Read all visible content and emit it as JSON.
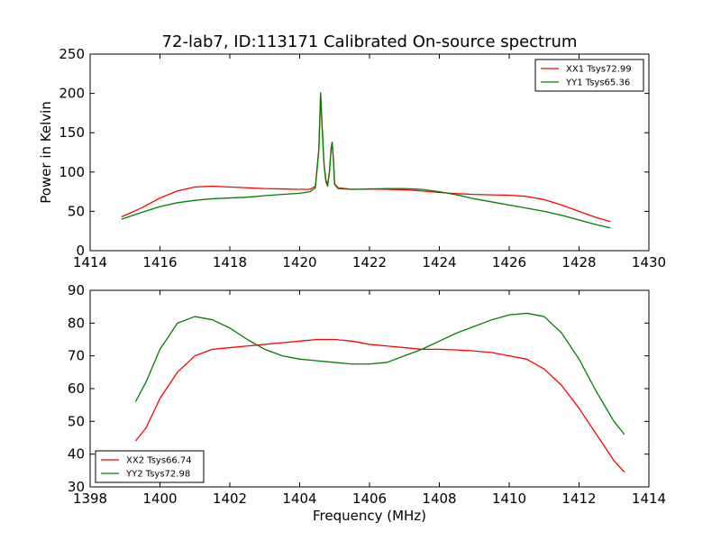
{
  "chart_data": [
    {
      "type": "line",
      "title": "72-lab7, ID:113171 Calibrated On-source spectrum",
      "xlabel": "",
      "ylabel": "Power in Kelvin",
      "xlim": [
        1414,
        1430
      ],
      "ylim": [
        0,
        250
      ],
      "xticks": [
        "1414",
        "1416",
        "1418",
        "1420",
        "1422",
        "1424",
        "1426",
        "1428",
        "1430"
      ],
      "yticks": [
        "0",
        "50",
        "100",
        "150",
        "200",
        "250"
      ],
      "legend_position": "top-right",
      "series": [
        {
          "name": "XX1 Tsys72.99",
          "color": "#ff0000",
          "x": [
            1414.9,
            1415.5,
            1416.0,
            1416.5,
            1417.0,
            1417.5,
            1418.0,
            1418.5,
            1419.0,
            1419.5,
            1420.0,
            1420.3,
            1420.45,
            1420.55,
            1420.6,
            1420.65,
            1420.7,
            1420.75,
            1420.8,
            1420.85,
            1420.9,
            1420.93,
            1420.97,
            1421.0,
            1421.1,
            1421.5,
            1422.0,
            1422.5,
            1423.0,
            1423.5,
            1424.0,
            1424.5,
            1425.0,
            1425.5,
            1426.0,
            1426.5,
            1427.0,
            1427.5,
            1428.0,
            1428.5,
            1428.9
          ],
          "y": [
            43,
            55,
            67,
            76,
            81,
            82,
            81,
            80,
            79,
            78.5,
            78,
            78,
            82,
            130,
            200,
            150,
            110,
            90,
            84,
            100,
            130,
            138,
            115,
            85,
            80,
            78,
            78.5,
            78,
            77.5,
            76,
            74,
            72.5,
            71.5,
            71,
            70.5,
            69,
            65,
            58,
            50,
            42,
            37
          ]
        },
        {
          "name": "YY1 Tsys65.36",
          "color": "#008000",
          "x": [
            1414.9,
            1415.5,
            1416.0,
            1416.5,
            1417.0,
            1417.5,
            1418.0,
            1418.5,
            1419.0,
            1419.5,
            1420.0,
            1420.3,
            1420.45,
            1420.55,
            1420.6,
            1420.65,
            1420.7,
            1420.75,
            1420.8,
            1420.85,
            1420.9,
            1420.93,
            1420.97,
            1421.0,
            1421.1,
            1421.5,
            1422.0,
            1422.5,
            1423.0,
            1423.5,
            1424.0,
            1424.5,
            1425.0,
            1425.5,
            1426.0,
            1426.5,
            1427.0,
            1427.5,
            1428.0,
            1428.5,
            1428.9
          ],
          "y": [
            40,
            49,
            56,
            61,
            64,
            66,
            67,
            68,
            70,
            71.5,
            73,
            75,
            80,
            128,
            201,
            152,
            108,
            88,
            82,
            98,
            128,
            137,
            113,
            84,
            79,
            78,
            78.5,
            79,
            79,
            78,
            75,
            71,
            66,
            62,
            58,
            54,
            50,
            45,
            39,
            33,
            29
          ]
        }
      ]
    },
    {
      "type": "line",
      "title": "",
      "xlabel": "Frequency (MHz)",
      "ylabel": "",
      "xlim": [
        1398,
        1414
      ],
      "ylim": [
        30,
        90
      ],
      "xticks": [
        "1398",
        "1400",
        "1402",
        "1404",
        "1406",
        "1408",
        "1410",
        "1412",
        "1414"
      ],
      "yticks": [
        "30",
        "40",
        "50",
        "60",
        "70",
        "80",
        "90"
      ],
      "legend_position": "bottom-left",
      "series": [
        {
          "name": "XX2 Tsys66.74",
          "color": "#ff0000",
          "x": [
            1399.3,
            1399.6,
            1400.0,
            1400.5,
            1401.0,
            1401.5,
            1402.0,
            1402.5,
            1403.0,
            1403.5,
            1404.0,
            1404.5,
            1405.0,
            1405.5,
            1406.0,
            1406.5,
            1407.0,
            1407.5,
            1408.0,
            1408.5,
            1409.0,
            1409.5,
            1410.0,
            1410.5,
            1411.0,
            1411.5,
            1412.0,
            1412.5,
            1413.0,
            1413.3
          ],
          "y": [
            44,
            48,
            57,
            65,
            70,
            72,
            72.5,
            73,
            73.5,
            74,
            74.5,
            75,
            75,
            74.5,
            73.5,
            73,
            72.5,
            72,
            72,
            71.8,
            71.5,
            71,
            70,
            69,
            66,
            61,
            54,
            46,
            38,
            34.5
          ]
        },
        {
          "name": "YY2 Tsys72.98",
          "color": "#008000",
          "x": [
            1399.3,
            1399.6,
            1400.0,
            1400.5,
            1401.0,
            1401.5,
            1402.0,
            1402.5,
            1403.0,
            1403.5,
            1404.0,
            1404.5,
            1405.0,
            1405.5,
            1406.0,
            1406.5,
            1407.0,
            1407.5,
            1408.0,
            1408.5,
            1409.0,
            1409.5,
            1410.0,
            1410.5,
            1411.0,
            1411.5,
            1412.0,
            1412.5,
            1413.0,
            1413.3
          ],
          "y": [
            56,
            62,
            72,
            80,
            82,
            81,
            78.5,
            75,
            72,
            70,
            69,
            68.5,
            68,
            67.5,
            67.5,
            68,
            70,
            72,
            74.5,
            77,
            79,
            81,
            82.5,
            83,
            82,
            77,
            69,
            59,
            50,
            46
          ]
        }
      ]
    }
  ]
}
